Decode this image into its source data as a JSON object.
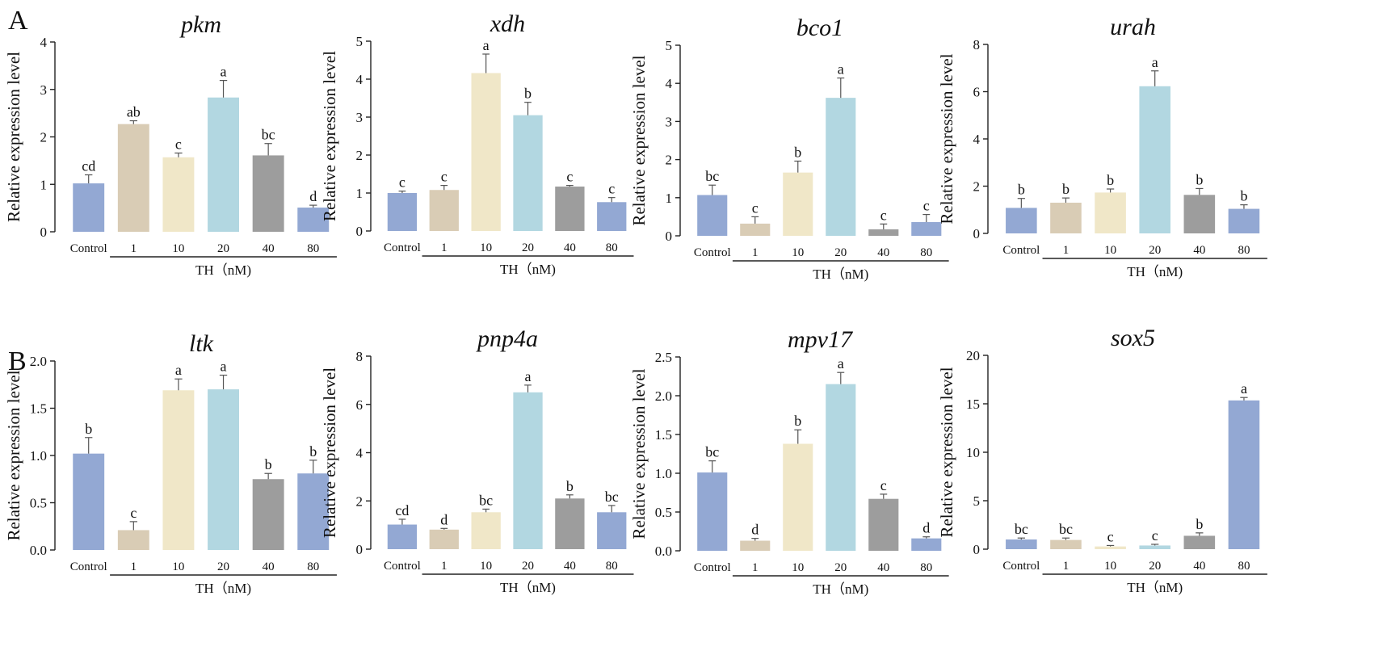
{
  "panels": [
    {
      "letter": "A"
    },
    {
      "letter": "B"
    }
  ],
  "colors": {
    "Control": "#93a8d3",
    "1": "#d9ccb5",
    "10": "#f0e7c8",
    "20": "#b2d7e1",
    "40": "#9d9d9d",
    "80": "#93a8d3"
  },
  "chart_data": [
    {
      "type": "bar",
      "panel": "A",
      "title": "pkm",
      "ylabel": "Relative expression level",
      "ylim": [
        0,
        4
      ],
      "yticks": [
        "0",
        "1",
        "2",
        "3",
        "4"
      ],
      "categories": [
        "Control",
        "1",
        "10",
        "20",
        "40",
        "80"
      ],
      "group_label": "TH（nM)",
      "values": [
        1.02,
        2.27,
        1.57,
        2.83,
        1.61,
        0.51
      ],
      "errors": [
        0.18,
        0.07,
        0.09,
        0.36,
        0.25,
        0.05
      ],
      "labels": [
        "cd",
        "ab",
        "c",
        "a",
        "bc",
        "d"
      ]
    },
    {
      "type": "bar",
      "panel": "A",
      "title": "xdh",
      "ylabel": "Relative expression level",
      "ylim": [
        0,
        5
      ],
      "yticks": [
        "0",
        "1",
        "2",
        "3",
        "4",
        "5"
      ],
      "categories": [
        "Control",
        "1",
        "10",
        "20",
        "40",
        "80"
      ],
      "group_label": "TH（nM)",
      "values": [
        1.0,
        1.08,
        4.16,
        3.05,
        1.17,
        0.76
      ],
      "errors": [
        0.05,
        0.12,
        0.5,
        0.34,
        0.03,
        0.12
      ],
      "labels": [
        "c",
        "c",
        "a",
        "b",
        "c",
        "c"
      ]
    },
    {
      "type": "bar",
      "panel": "A",
      "title": "bco1",
      "ylabel": "Relative expression level",
      "ylim": [
        0,
        5
      ],
      "yticks": [
        "0",
        "1",
        "2",
        "3",
        "4",
        "5"
      ],
      "categories": [
        "Control",
        "1",
        "10",
        "20",
        "40",
        "80"
      ],
      "group_label": "TH（nM)",
      "values": [
        1.07,
        0.32,
        1.66,
        3.62,
        0.17,
        0.36
      ],
      "errors": [
        0.26,
        0.18,
        0.3,
        0.52,
        0.14,
        0.2
      ],
      "labels": [
        "bc",
        "c",
        "b",
        "a",
        "c",
        "c"
      ]
    },
    {
      "type": "bar",
      "panel": "A",
      "title": "urah",
      "ylabel": "Relative expression level",
      "ylim": [
        0,
        8
      ],
      "yticks": [
        "0",
        "2",
        "4",
        "6",
        "8"
      ],
      "categories": [
        "Control",
        "1",
        "10",
        "20",
        "40",
        "80"
      ],
      "group_label": "TH（nM)",
      "values": [
        1.08,
        1.3,
        1.73,
        6.23,
        1.63,
        1.04
      ],
      "errors": [
        0.4,
        0.2,
        0.15,
        0.65,
        0.27,
        0.17
      ],
      "labels": [
        "b",
        "b",
        "b",
        "a",
        "b",
        "b"
      ]
    },
    {
      "type": "bar",
      "panel": "B",
      "title": "ltk",
      "ylabel": "Relative expression level",
      "ylim": [
        0,
        2.0
      ],
      "yticks": [
        "0.0",
        "0.5",
        "1.0",
        "1.5",
        "2.0"
      ],
      "categories": [
        "Control",
        "1",
        "10",
        "20",
        "40",
        "80"
      ],
      "group_label": "TH（nM)",
      "values": [
        1.02,
        0.21,
        1.69,
        1.7,
        0.75,
        0.81
      ],
      "errors": [
        0.17,
        0.09,
        0.12,
        0.15,
        0.06,
        0.14
      ],
      "labels": [
        "b",
        "c",
        "a",
        "a",
        "b",
        "b"
      ]
    },
    {
      "type": "bar",
      "panel": "B",
      "title": "pnp4a",
      "ylabel": "Relative expression level",
      "ylim": [
        0,
        8
      ],
      "yticks": [
        "0",
        "2",
        "4",
        "6",
        "8"
      ],
      "categories": [
        "Control",
        "1",
        "10",
        "20",
        "40",
        "80"
      ],
      "group_label": "TH（nM)",
      "values": [
        1.02,
        0.81,
        1.53,
        6.5,
        2.1,
        1.53
      ],
      "errors": [
        0.22,
        0.05,
        0.13,
        0.3,
        0.15,
        0.28
      ],
      "labels": [
        "cd",
        "d",
        "bc",
        "a",
        "b",
        "bc"
      ]
    },
    {
      "type": "bar",
      "panel": "B",
      "title": "mpv17",
      "ylabel": "Relative expression level",
      "ylim": [
        0,
        2.5
      ],
      "yticks": [
        "0.0",
        "0.5",
        "1.0",
        "1.5",
        "2.0",
        "2.5"
      ],
      "categories": [
        "Control",
        "1",
        "10",
        "20",
        "40",
        "80"
      ],
      "group_label": "TH（nM)",
      "values": [
        1.01,
        0.13,
        1.38,
        2.15,
        0.67,
        0.16
      ],
      "errors": [
        0.15,
        0.03,
        0.18,
        0.15,
        0.06,
        0.02
      ],
      "labels": [
        "bc",
        "d",
        "b",
        "a",
        "c",
        "d"
      ]
    },
    {
      "type": "bar",
      "panel": "B",
      "title": "sox5",
      "ylabel": "Relative expression level",
      "ylim": [
        0,
        20
      ],
      "yticks": [
        "0",
        "5",
        "10",
        "15",
        "20"
      ],
      "categories": [
        "Control",
        "1",
        "10",
        "20",
        "40",
        "80"
      ],
      "group_label": "TH（nM)",
      "values": [
        1.0,
        0.95,
        0.28,
        0.38,
        1.38,
        15.35
      ],
      "errors": [
        0.15,
        0.2,
        0.1,
        0.12,
        0.3,
        0.3
      ],
      "labels": [
        "bc",
        "bc",
        "c",
        "c",
        "b",
        "a"
      ]
    }
  ]
}
